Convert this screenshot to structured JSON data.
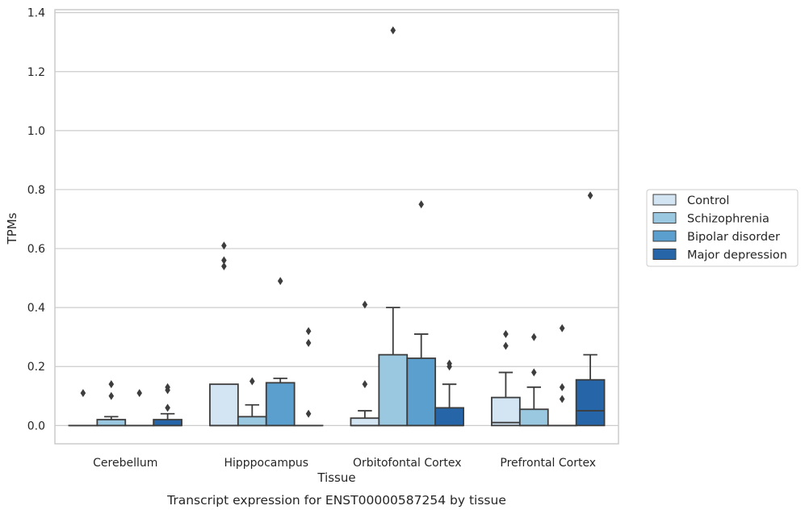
{
  "chart_data": {
    "type": "box",
    "title": "",
    "caption": "Transcript expression for ENST00000587254 by tissue",
    "xlabel": "Tissue",
    "ylabel": "TPMs",
    "ylim": [
      -0.062,
      1.41
    ],
    "yticks": [
      0.0,
      0.2,
      0.4,
      0.6,
      0.8,
      1.0,
      1.2,
      1.4
    ],
    "ytick_labels": [
      "0.0",
      "0.2",
      "0.4",
      "0.6",
      "0.8",
      "1.0",
      "1.2",
      "1.4"
    ],
    "grid": "horizontal",
    "legend_position": "right",
    "categories": [
      "Cerebellum",
      "Hipppocampus",
      "Orbitofontal Cortex",
      "Prefrontal Cortex"
    ],
    "series": [
      {
        "name": "Control",
        "color": "#d3e4f3",
        "boxes": [
          {
            "whislo": 0,
            "q1": 0,
            "med": 0,
            "q3": 0,
            "whishi": 0,
            "fliers": [
              0.11
            ]
          },
          {
            "whislo": 0,
            "q1": 0,
            "med": 0,
            "q3": 0.14,
            "whishi": 0.14,
            "fliers": [
              0.54,
              0.56,
              0.61
            ]
          },
          {
            "whislo": 0,
            "q1": 0,
            "med": 0,
            "q3": 0.025,
            "whishi": 0.05,
            "fliers": [
              0.14,
              0.41
            ]
          },
          {
            "whislo": 0,
            "q1": 0,
            "med": 0.01,
            "q3": 0.095,
            "whishi": 0.18,
            "fliers": [
              0.27,
              0.31
            ]
          }
        ]
      },
      {
        "name": "Schizophrenia",
        "color": "#9ac8e0",
        "boxes": [
          {
            "whislo": 0,
            "q1": 0,
            "med": 0,
            "q3": 0.02,
            "whishi": 0.03,
            "fliers": [
              0.1,
              0.14
            ]
          },
          {
            "whislo": 0,
            "q1": 0,
            "med": 0,
            "q3": 0.03,
            "whishi": 0.07,
            "fliers": [
              0.15
            ]
          },
          {
            "whislo": 0,
            "q1": 0,
            "med": 0,
            "q3": 0.24,
            "whishi": 0.4,
            "fliers": [
              1.34
            ]
          },
          {
            "whislo": 0,
            "q1": 0,
            "med": 0,
            "q3": 0.055,
            "whishi": 0.13,
            "fliers": [
              0.18,
              0.3
            ]
          }
        ]
      },
      {
        "name": "Bipolar disorder",
        "color": "#5a9fcd",
        "boxes": [
          {
            "whislo": 0,
            "q1": 0,
            "med": 0,
            "q3": 0,
            "whishi": 0,
            "fliers": [
              0.11
            ]
          },
          {
            "whislo": 0,
            "q1": 0,
            "med": 0,
            "q3": 0.145,
            "whishi": 0.16,
            "fliers": [
              0.49
            ]
          },
          {
            "whislo": 0,
            "q1": 0,
            "med": 0,
            "q3": 0.228,
            "whishi": 0.31,
            "fliers": [
              0.75
            ]
          },
          {
            "whislo": 0,
            "q1": 0,
            "med": 0,
            "q3": 0,
            "whishi": 0,
            "fliers": [
              0.09,
              0.13,
              0.33
            ]
          }
        ]
      },
      {
        "name": "Major depression",
        "color": "#2666a8",
        "boxes": [
          {
            "whislo": 0,
            "q1": 0,
            "med": 0,
            "q3": 0.02,
            "whishi": 0.04,
            "fliers": [
              0.06,
              0.12,
              0.13
            ]
          },
          {
            "whislo": 0,
            "q1": 0,
            "med": 0,
            "q3": 0,
            "whishi": 0,
            "fliers": [
              0.04,
              0.28,
              0.32
            ]
          },
          {
            "whislo": 0,
            "q1": 0,
            "med": 0,
            "q3": 0.06,
            "whishi": 0.14,
            "fliers": [
              0.2,
              0.21
            ]
          },
          {
            "whislo": 0,
            "q1": 0,
            "med": 0.05,
            "q3": 0.155,
            "whishi": 0.24,
            "fliers": [
              0.78
            ]
          }
        ]
      }
    ]
  }
}
